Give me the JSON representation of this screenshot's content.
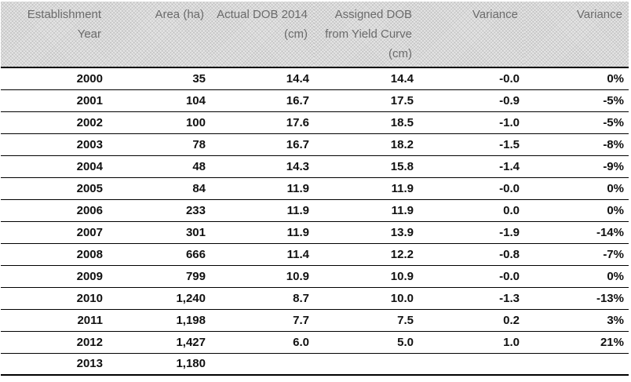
{
  "table": {
    "headers": [
      "Establishment Year",
      "Area (ha)",
      "Actual DOB 2014 (cm)",
      "Assigned DOB from Yield Curve (cm)",
      "Variance",
      "Variance"
    ],
    "rows": [
      [
        "2000",
        "35",
        "14.4",
        "14.4",
        "-0.0",
        "0%"
      ],
      [
        "2001",
        "104",
        "16.7",
        "17.5",
        "-0.9",
        "-5%"
      ],
      [
        "2002",
        "100",
        "17.6",
        "18.5",
        "-1.0",
        "-5%"
      ],
      [
        "2003",
        "78",
        "16.7",
        "18.2",
        "-1.5",
        "-8%"
      ],
      [
        "2004",
        "48",
        "14.3",
        "15.8",
        "-1.4",
        "-9%"
      ],
      [
        "2005",
        "84",
        "11.9",
        "11.9",
        "-0.0",
        "0%"
      ],
      [
        "2006",
        "233",
        "11.9",
        "11.9",
        "0.0",
        "0%"
      ],
      [
        "2007",
        "301",
        "11.9",
        "13.9",
        "-1.9",
        "-14%"
      ],
      [
        "2008",
        "666",
        "11.4",
        "12.2",
        "-0.8",
        "-7%"
      ],
      [
        "2009",
        "799",
        "10.9",
        "10.9",
        "-0.0",
        "0%"
      ],
      [
        "2010",
        "1,240",
        "8.7",
        "10.0",
        "-1.3",
        "-13%"
      ],
      [
        "2011",
        "1,198",
        "7.7",
        "7.5",
        "0.2",
        "3%"
      ],
      [
        "2012",
        "1,427",
        "6.0",
        "5.0",
        "1.0",
        "21%"
      ],
      [
        "2013",
        "1,180",
        "",
        "",
        "",
        ""
      ]
    ]
  }
}
